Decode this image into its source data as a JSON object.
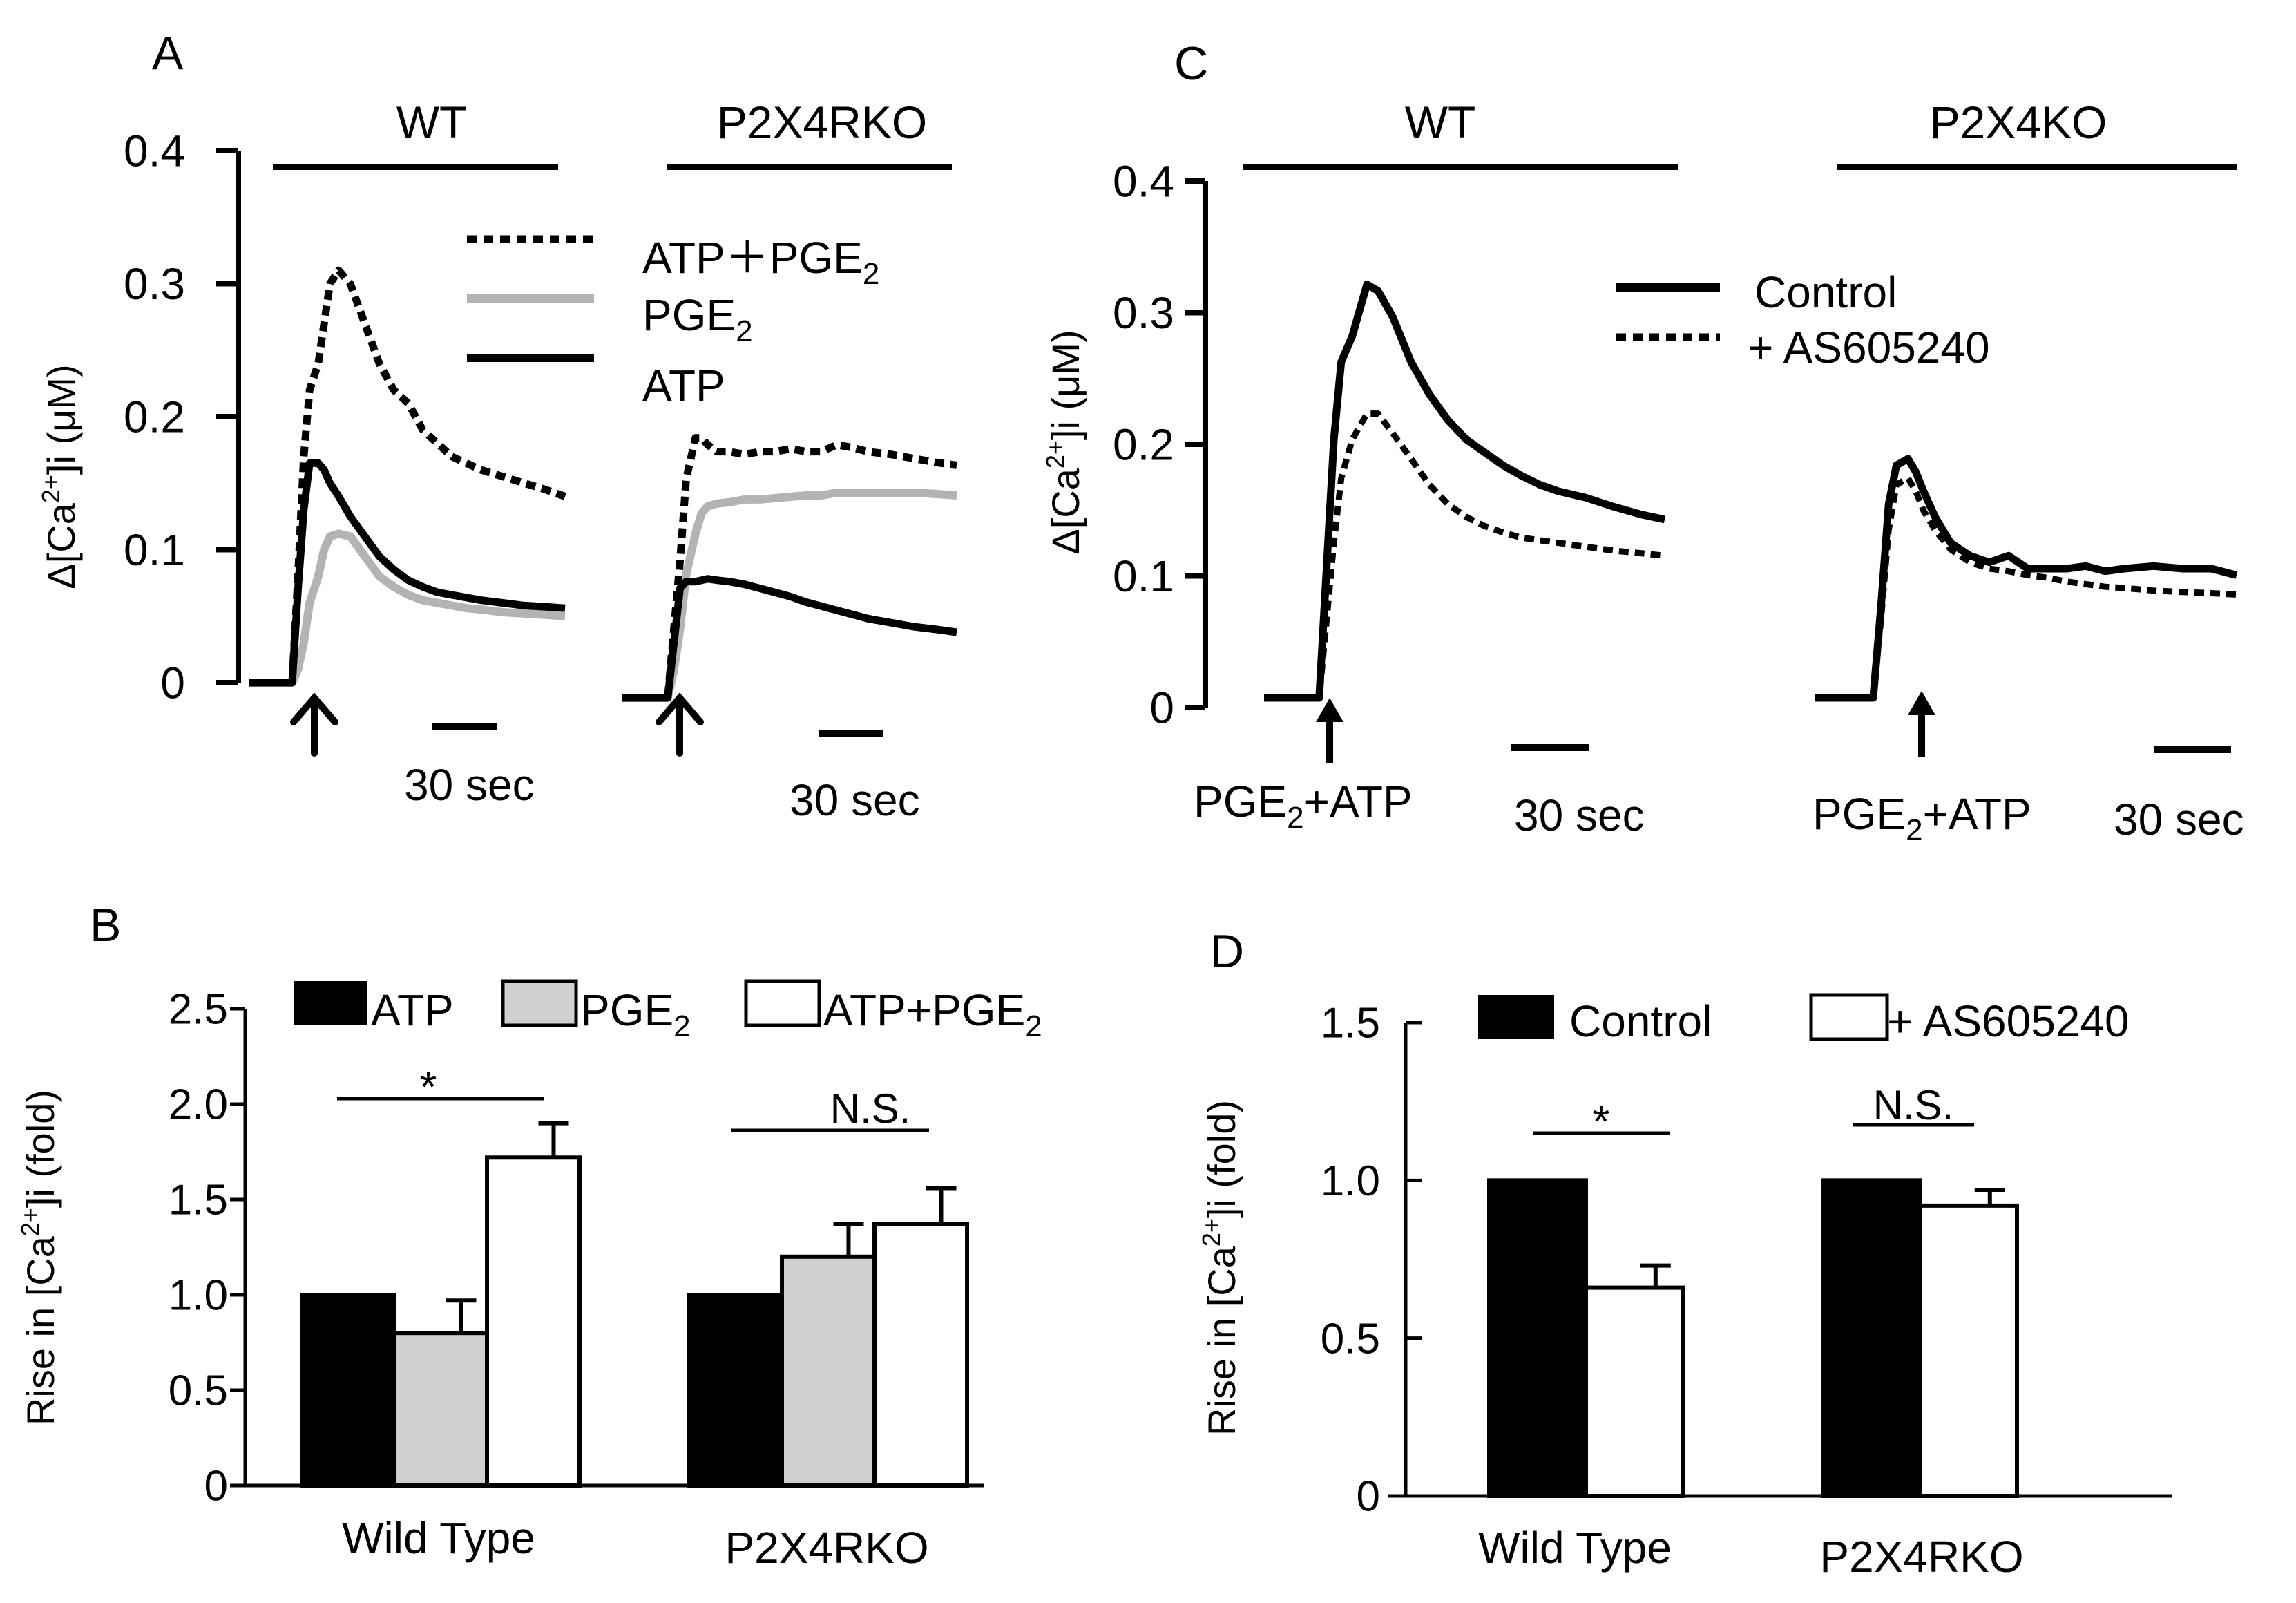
{
  "panels": {
    "A": {
      "letter": "A",
      "groups": [
        "WT",
        "P2X4RKO"
      ],
      "y_axis_label": "Δ[Ca2+]i (μM)",
      "y_ticks": [
        "0",
        "0.1",
        "0.2",
        "0.3",
        "0.4"
      ],
      "scale_bar_label": "30 sec",
      "legend": [
        "ATP＋PGE2",
        "PGE2",
        "ATP"
      ]
    },
    "B": {
      "letter": "B",
      "y_axis_label": "Rise in [Ca2+]i (fold)",
      "y_ticks": [
        "0",
        "0.5",
        "1.0",
        "1.5",
        "2.0",
        "2.5"
      ],
      "categories": [
        "Wild Type",
        "P2X4RKO"
      ],
      "legend": [
        "ATP",
        "PGE2",
        "ATP+PGE2"
      ],
      "annotations": [
        "*",
        "N.S."
      ]
    },
    "C": {
      "letter": "C",
      "groups": [
        "WT",
        "P2X4KO"
      ],
      "y_axis_label": "Δ[Ca2+]i (μM)",
      "y_ticks": [
        "0",
        "0.1",
        "0.2",
        "0.3",
        "0.4"
      ],
      "scale_bar_label": "30 sec",
      "stimulus_label": "PGE2+ATP",
      "legend": [
        "Control",
        "+ AS605240"
      ]
    },
    "D": {
      "letter": "D",
      "y_axis_label": "Rise in [Ca2+]i (fold)",
      "y_ticks": [
        "0",
        "0.5",
        "1.0",
        "1.5"
      ],
      "categories": [
        "Wild Type",
        "P2X4RKO"
      ],
      "legend": [
        "Control",
        "+ AS605240"
      ],
      "annotations": [
        "*",
        "N.S."
      ]
    }
  },
  "colors": {
    "black": "#000000",
    "gray_fill": "#d0d0d0",
    "gray_line": "#b3b3b3",
    "white": "#ffffff"
  },
  "chart_data": [
    {
      "panel": "A",
      "type": "line",
      "subplot": "WT",
      "ylim": [
        0,
        0.4
      ],
      "series": [
        {
          "name": "ATP＋PGE2",
          "x": [
            0,
            10,
            20,
            26,
            30,
            34,
            38,
            42,
            48,
            52,
            56,
            62,
            70,
            80,
            90,
            100,
            110,
            120,
            130,
            140,
            150,
            160,
            175,
            190,
            205,
            218
          ],
          "y": [
            0,
            0,
            0,
            0,
            0,
            0.08,
            0.17,
            0.22,
            0.24,
            0.27,
            0.3,
            0.31,
            0.3,
            0.27,
            0.24,
            0.22,
            0.21,
            0.19,
            0.18,
            0.17,
            0.165,
            0.16,
            0.155,
            0.15,
            0.145,
            0.14
          ]
        },
        {
          "name": "PGE2",
          "x": [
            0,
            10,
            20,
            26,
            30,
            34,
            38,
            42,
            48,
            52,
            56,
            62,
            70,
            80,
            90,
            100,
            110,
            120,
            130,
            140,
            150,
            160,
            175,
            190,
            205,
            218
          ],
          "y": [
            0,
            0,
            0,
            0,
            0,
            0.01,
            0.03,
            0.06,
            0.08,
            0.1,
            0.11,
            0.112,
            0.11,
            0.095,
            0.08,
            0.072,
            0.066,
            0.062,
            0.06,
            0.058,
            0.056,
            0.055,
            0.053,
            0.052,
            0.051,
            0.05
          ]
        },
        {
          "name": "ATP",
          "x": [
            0,
            10,
            20,
            26,
            30,
            34,
            38,
            42,
            48,
            52,
            56,
            62,
            70,
            80,
            90,
            100,
            110,
            120,
            130,
            140,
            150,
            160,
            175,
            190,
            205,
            218
          ],
          "y": [
            0,
            0,
            0,
            0,
            0,
            0.07,
            0.13,
            0.165,
            0.165,
            0.16,
            0.15,
            0.14,
            0.125,
            0.11,
            0.095,
            0.085,
            0.077,
            0.072,
            0.068,
            0.066,
            0.064,
            0.062,
            0.06,
            0.058,
            0.057,
            0.056
          ]
        }
      ]
    },
    {
      "panel": "A",
      "type": "line",
      "subplot": "P2X4RKO",
      "ylim": [
        0,
        0.4
      ],
      "series": [
        {
          "name": "ATP＋PGE2",
          "x": [
            0,
            10,
            20,
            26,
            30,
            34,
            38,
            42,
            48,
            52,
            56,
            62,
            70,
            80,
            90,
            100,
            110,
            120,
            130,
            140,
            150,
            160,
            175,
            190,
            205,
            218
          ],
          "y": [
            0,
            0,
            0,
            0,
            0,
            0.05,
            0.1,
            0.16,
            0.19,
            0.19,
            0.185,
            0.18,
            0.18,
            0.178,
            0.18,
            0.18,
            0.182,
            0.18,
            0.18,
            0.185,
            0.183,
            0.18,
            0.178,
            0.175,
            0.172,
            0.17
          ]
        },
        {
          "name": "PGE2",
          "x": [
            0,
            10,
            20,
            26,
            30,
            34,
            38,
            42,
            48,
            52,
            56,
            62,
            70,
            80,
            90,
            100,
            110,
            120,
            130,
            140,
            150,
            160,
            175,
            190,
            205,
            218
          ],
          "y": [
            0,
            0,
            0,
            0,
            0,
            0.02,
            0.05,
            0.09,
            0.12,
            0.135,
            0.14,
            0.142,
            0.143,
            0.145,
            0.145,
            0.146,
            0.147,
            0.148,
            0.148,
            0.15,
            0.15,
            0.15,
            0.15,
            0.15,
            0.149,
            0.148
          ]
        },
        {
          "name": "ATP",
          "x": [
            0,
            10,
            20,
            26,
            30,
            34,
            38,
            42,
            48,
            52,
            56,
            62,
            70,
            80,
            90,
            100,
            110,
            120,
            130,
            140,
            150,
            160,
            175,
            190,
            205,
            218
          ],
          "y": [
            0,
            0,
            0,
            0,
            0,
            0.04,
            0.08,
            0.085,
            0.085,
            0.086,
            0.087,
            0.086,
            0.085,
            0.083,
            0.08,
            0.077,
            0.074,
            0.07,
            0.067,
            0.064,
            0.061,
            0.058,
            0.055,
            0.052,
            0.05,
            0.048
          ]
        }
      ]
    },
    {
      "panel": "B",
      "type": "bar",
      "categories": [
        "Wild Type",
        "P2X4RKO"
      ],
      "ylim": [
        0,
        2.5
      ],
      "series": [
        {
          "name": "ATP",
          "values": [
            1.0,
            1.0
          ],
          "errors": [
            0,
            0
          ]
        },
        {
          "name": "PGE2",
          "values": [
            0.8,
            1.2
          ],
          "errors": [
            0.17,
            0.17
          ]
        },
        {
          "name": "ATP+PGE2",
          "values": [
            1.72,
            1.37
          ],
          "errors": [
            0.18,
            0.19
          ]
        }
      ]
    },
    {
      "panel": "C",
      "type": "line",
      "subplot": "WT",
      "ylim": [
        0,
        0.4
      ],
      "series": [
        {
          "name": "Control",
          "x": [
            0,
            10,
            20,
            26,
            30,
            34,
            38,
            42,
            48,
            52,
            56,
            62,
            70,
            80,
            90,
            100,
            110,
            120,
            130,
            140,
            150,
            160,
            175,
            190,
            205,
            218
          ],
          "y": [
            0,
            0,
            0,
            0,
            0,
            0.1,
            0.2,
            0.26,
            0.28,
            0.3,
            0.32,
            0.315,
            0.295,
            0.26,
            0.235,
            0.215,
            0.2,
            0.19,
            0.18,
            0.172,
            0.165,
            0.16,
            0.155,
            0.148,
            0.142,
            0.138
          ]
        },
        {
          "name": "+ AS605240",
          "x": [
            0,
            10,
            20,
            26,
            30,
            34,
            38,
            42,
            48,
            52,
            56,
            62,
            70,
            80,
            90,
            100,
            110,
            120,
            130,
            140,
            150,
            160,
            175,
            190,
            205,
            218
          ],
          "y": [
            0,
            0,
            0,
            0,
            0,
            0.06,
            0.12,
            0.17,
            0.2,
            0.21,
            0.22,
            0.22,
            0.205,
            0.185,
            0.165,
            0.15,
            0.14,
            0.133,
            0.128,
            0.124,
            0.122,
            0.12,
            0.117,
            0.114,
            0.112,
            0.11
          ]
        }
      ]
    },
    {
      "panel": "C",
      "type": "line",
      "subplot": "P2X4KO",
      "ylim": [
        0,
        0.4
      ],
      "series": [
        {
          "name": "Control",
          "x": [
            0,
            10,
            20,
            26,
            30,
            34,
            38,
            42,
            48,
            52,
            56,
            62,
            70,
            80,
            90,
            100,
            110,
            120,
            130,
            140,
            150,
            160,
            175,
            190,
            205,
            218
          ],
          "y": [
            0,
            0,
            0,
            0,
            0,
            0.07,
            0.15,
            0.18,
            0.185,
            0.175,
            0.16,
            0.14,
            0.12,
            0.11,
            0.105,
            0.11,
            0.1,
            0.1,
            0.1,
            0.102,
            0.098,
            0.1,
            0.102,
            0.1,
            0.1,
            0.095
          ]
        },
        {
          "name": "+ AS605240",
          "x": [
            0,
            10,
            20,
            26,
            30,
            34,
            38,
            42,
            48,
            52,
            56,
            62,
            70,
            80,
            90,
            100,
            110,
            120,
            130,
            140,
            150,
            160,
            175,
            190,
            205,
            218
          ],
          "y": [
            0,
            0,
            0,
            0,
            0,
            0.06,
            0.13,
            0.165,
            0.17,
            0.16,
            0.145,
            0.13,
            0.115,
            0.105,
            0.1,
            0.098,
            0.095,
            0.093,
            0.09,
            0.088,
            0.086,
            0.085,
            0.083,
            0.082,
            0.081,
            0.08
          ]
        }
      ]
    },
    {
      "panel": "D",
      "type": "bar",
      "categories": [
        "Wild Type",
        "P2X4RKO"
      ],
      "ylim": [
        0,
        1.5
      ],
      "series": [
        {
          "name": "Control",
          "values": [
            1.0,
            1.0
          ],
          "errors": [
            0,
            0
          ]
        },
        {
          "name": "+ AS605240",
          "values": [
            0.66,
            0.92
          ],
          "errors": [
            0.07,
            0.05
          ]
        }
      ]
    }
  ]
}
